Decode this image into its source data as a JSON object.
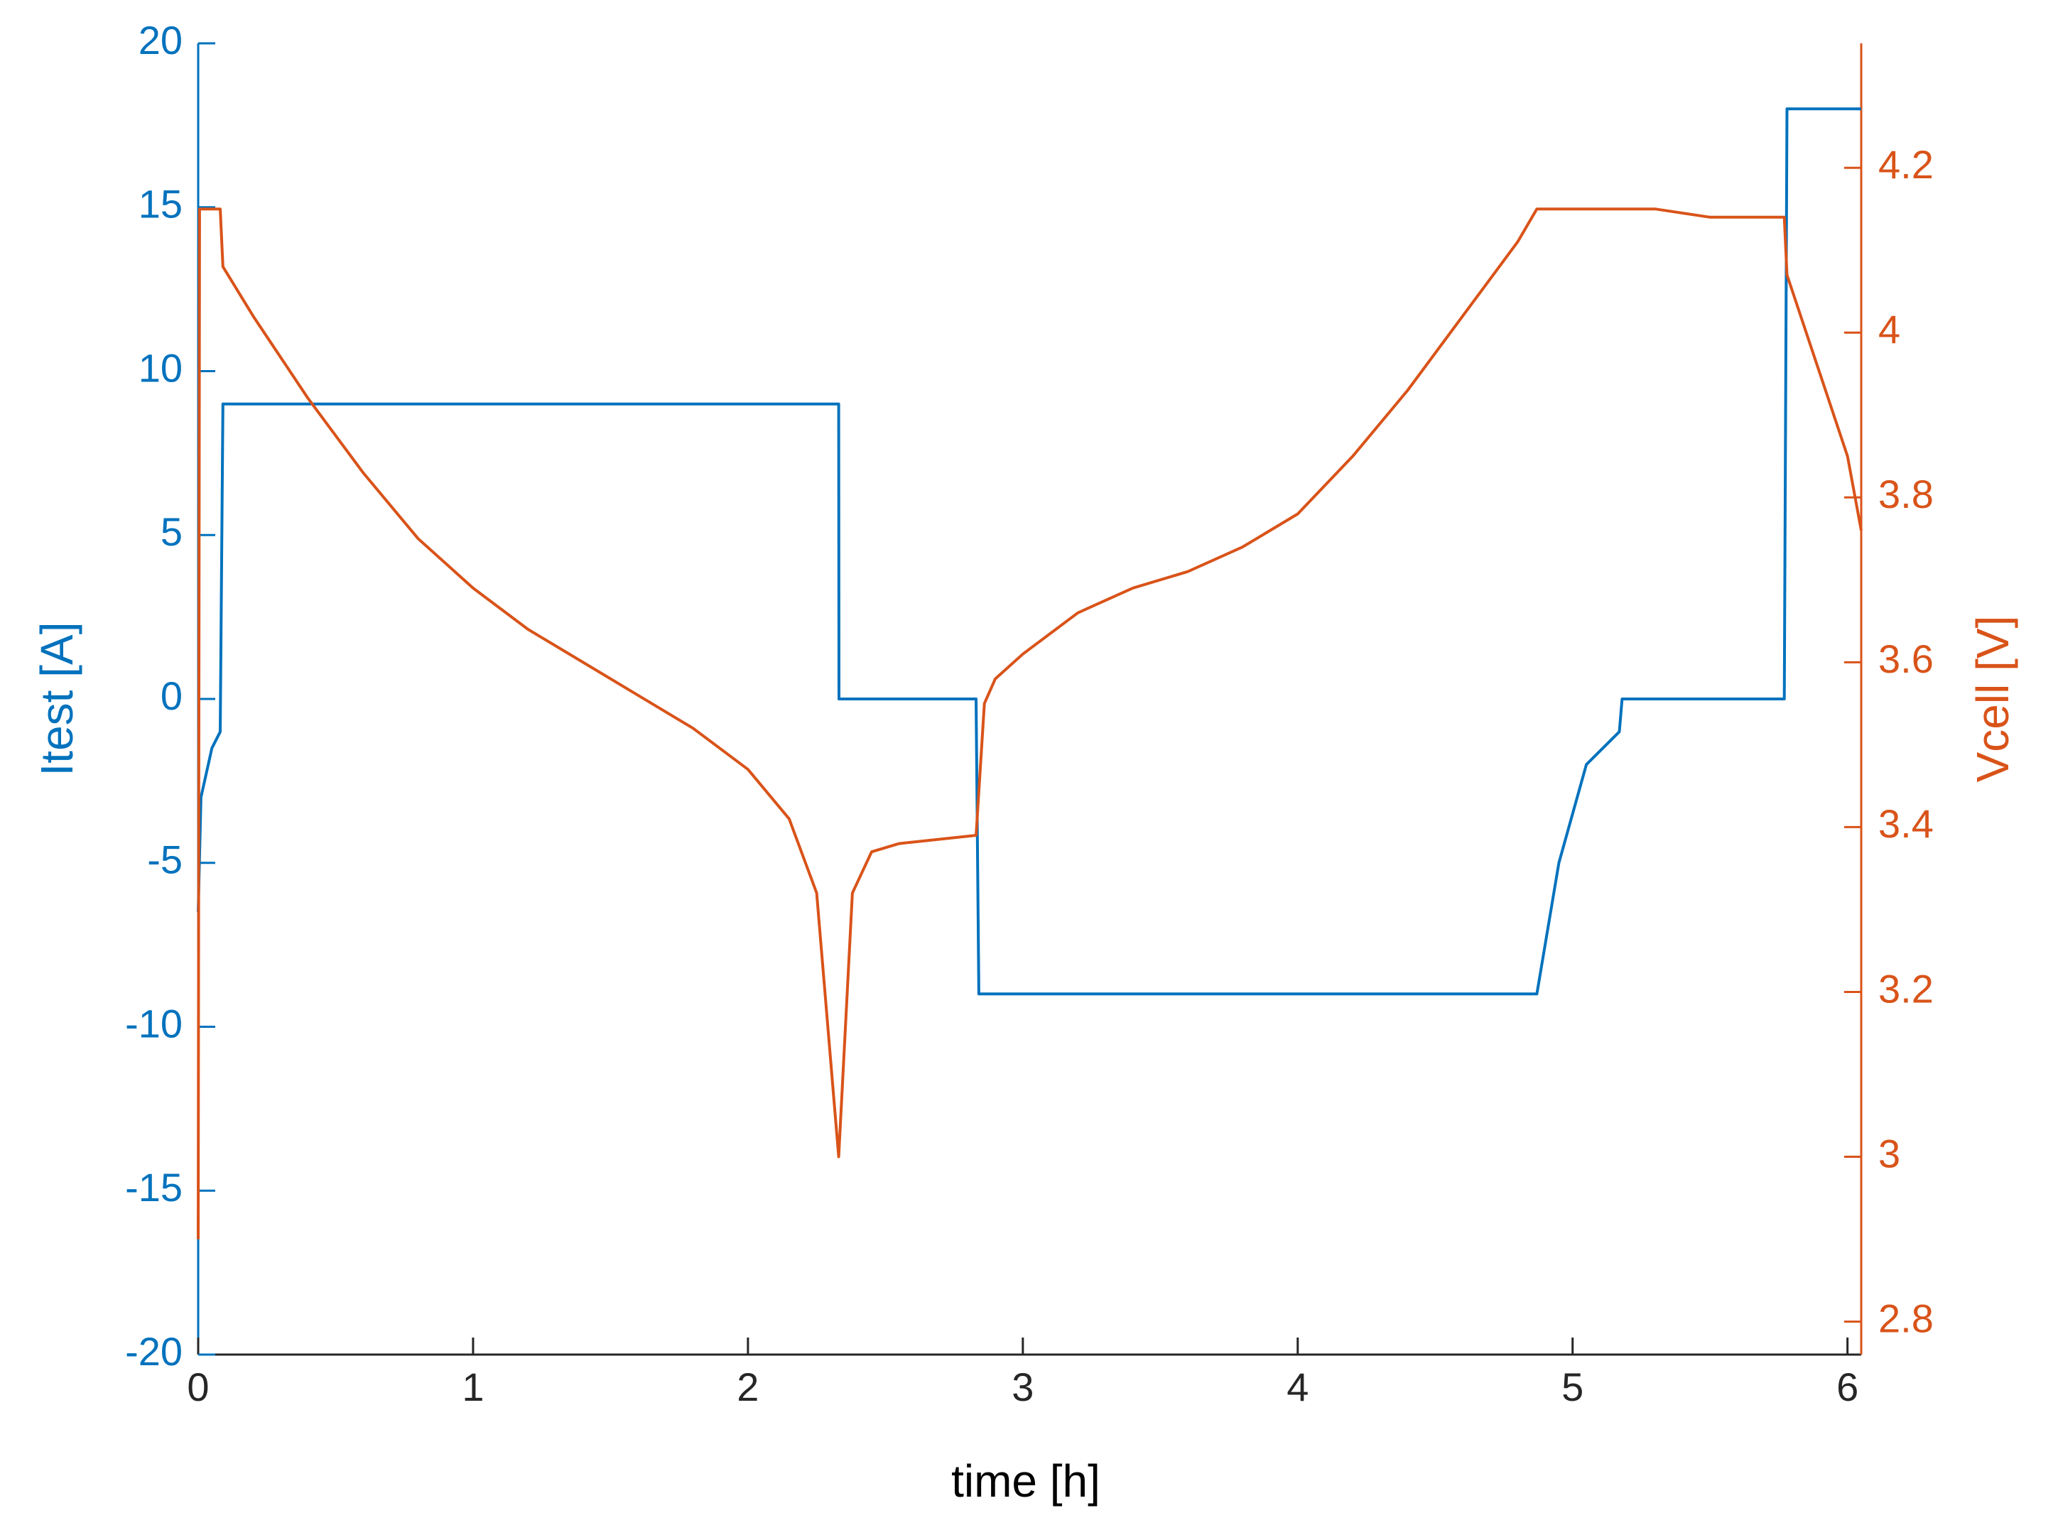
{
  "chart_data": {
    "type": "line",
    "xlabel": "time [h]",
    "ylabel": "Itest [A]",
    "y2label": "Vcell [V]",
    "xlim": [
      0,
      6.05
    ],
    "xticks": [
      0,
      1,
      2,
      3,
      4,
      5,
      6
    ],
    "ylim": [
      -20,
      20
    ],
    "yticks": [
      -20,
      -15,
      -10,
      -5,
      0,
      5,
      10,
      15,
      20
    ],
    "y2lim": [
      2.76,
      4.351
    ],
    "y2ticks": [
      2.8,
      3,
      3.2,
      3.4,
      3.6,
      3.8,
      4,
      4.2
    ],
    "series": [
      {
        "name": "Itest",
        "color": "#0072BD",
        "axis": "y",
        "x": [
          0,
          0.01,
          0.05,
          0.08,
          0.09,
          2.33,
          2.331,
          2.83,
          2.84,
          4.87,
          4.95,
          5.05,
          5.17,
          5.18,
          5.77,
          5.78,
          6.05
        ],
        "values": [
          -6.5,
          -3,
          -1.5,
          -1,
          9,
          9,
          0,
          0,
          -9,
          -9,
          -5,
          -2,
          -1,
          0,
          0,
          18,
          18
        ]
      },
      {
        "name": "Vcell",
        "color": "#D95319",
        "axis": "y2",
        "x": [
          0,
          0.005,
          0.08,
          0.09,
          0.2,
          0.4,
          0.6,
          0.8,
          1.0,
          1.2,
          1.4,
          1.6,
          1.8,
          2.0,
          2.15,
          2.25,
          2.33,
          2.38,
          2.45,
          2.55,
          2.83,
          2.86,
          2.9,
          3.0,
          3.2,
          3.4,
          3.6,
          3.8,
          4.0,
          4.2,
          4.4,
          4.6,
          4.8,
          4.87,
          5.3,
          5.5,
          5.77,
          5.78,
          5.9,
          6.0,
          6.05
        ],
        "values": [
          2.9,
          4.15,
          4.15,
          4.08,
          4.02,
          3.92,
          3.83,
          3.75,
          3.69,
          3.64,
          3.6,
          3.56,
          3.52,
          3.47,
          3.41,
          3.32,
          3.0,
          3.32,
          3.37,
          3.38,
          3.39,
          3.55,
          3.58,
          3.61,
          3.66,
          3.69,
          3.71,
          3.74,
          3.78,
          3.85,
          3.93,
          4.02,
          4.11,
          4.15,
          4.15,
          4.14,
          4.14,
          4.07,
          3.95,
          3.85,
          3.76
        ]
      }
    ]
  }
}
